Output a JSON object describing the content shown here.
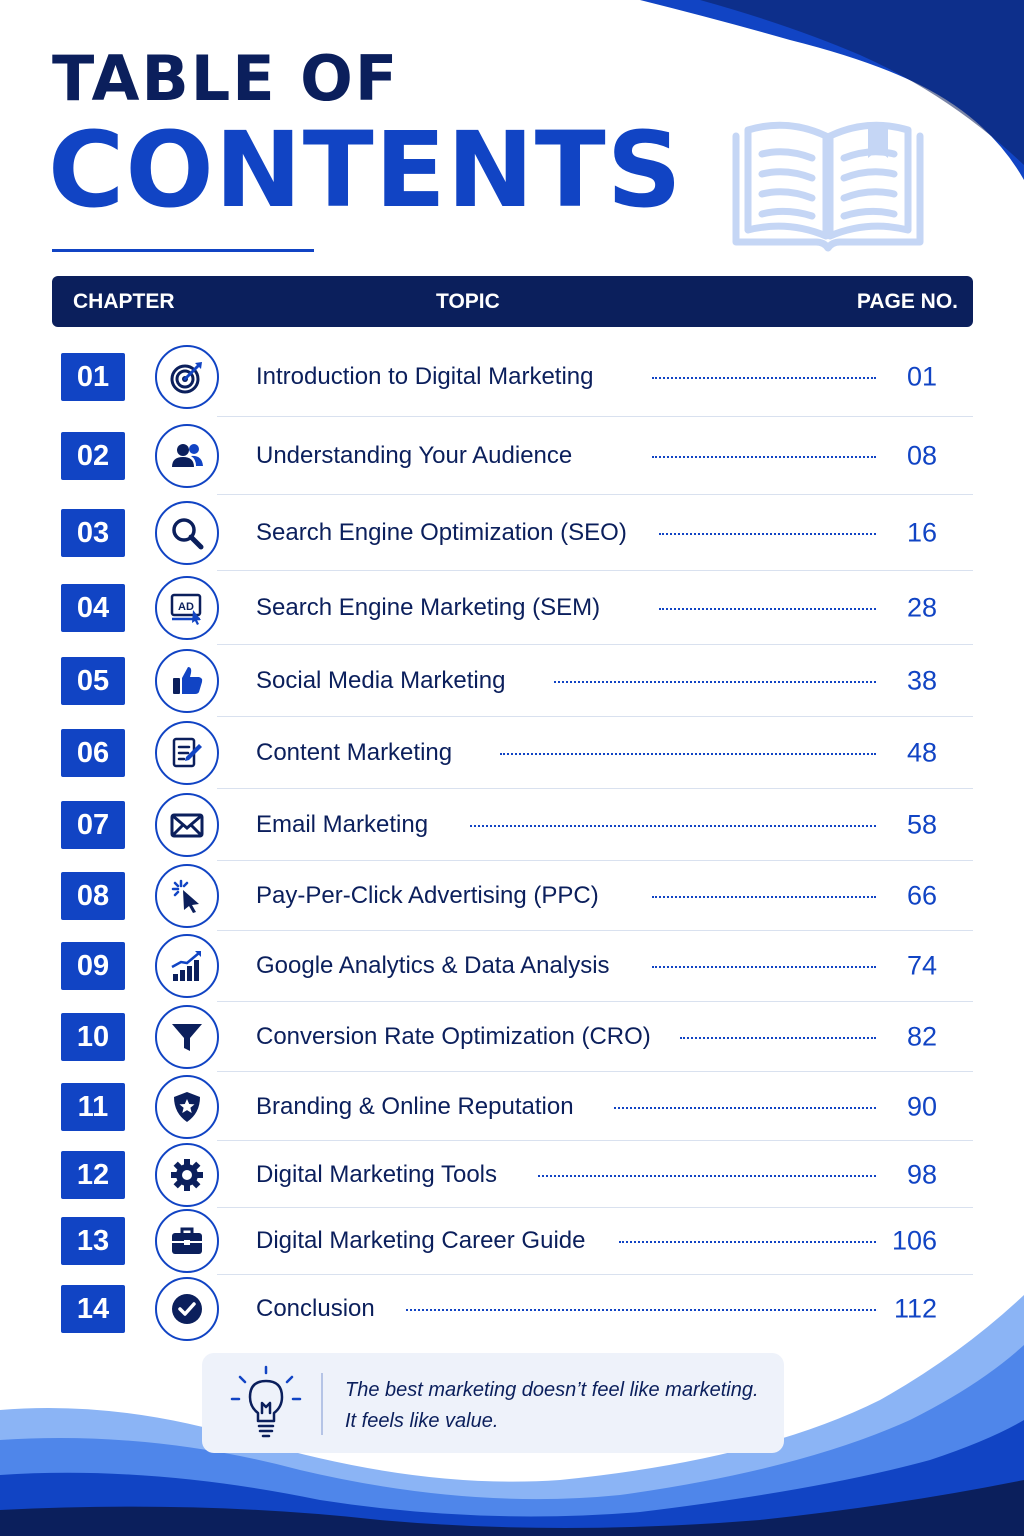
{
  "title": {
    "line1": "TABLE OF",
    "line2": "CONTENTS"
  },
  "table": {
    "headers": {
      "chapter": "CHAPTER",
      "topic": "TOPIC",
      "page": "PAGE NO."
    },
    "rows": [
      {
        "num": "01",
        "icon": "target-icon",
        "topic": "Introduction to Digital Marketing",
        "page": "01"
      },
      {
        "num": "02",
        "icon": "users-icon",
        "topic": "Understanding Your Audience",
        "page": "08"
      },
      {
        "num": "03",
        "icon": "search-icon",
        "topic": "Search Engine Optimization (SEO)",
        "page": "16"
      },
      {
        "num": "04",
        "icon": "ad-click-icon",
        "topic": "Search Engine Marketing (SEM)",
        "page": "28"
      },
      {
        "num": "05",
        "icon": "thumbs-up-icon",
        "topic": "Social Media Marketing",
        "page": "38"
      },
      {
        "num": "06",
        "icon": "edit-document-icon",
        "topic": "Content Marketing",
        "page": "48"
      },
      {
        "num": "07",
        "icon": "envelope-icon",
        "topic": "Email Marketing",
        "page": "58"
      },
      {
        "num": "08",
        "icon": "cursor-click-icon",
        "topic": "Pay-Per-Click Advertising (PPC)",
        "page": "66"
      },
      {
        "num": "09",
        "icon": "bar-chart-trend-icon",
        "topic": "Google Analytics & Data Analysis",
        "page": "74"
      },
      {
        "num": "10",
        "icon": "funnel-icon",
        "topic": "Conversion Rate Optimization (CRO)",
        "page": "82"
      },
      {
        "num": "11",
        "icon": "shield-star-icon",
        "topic": "Branding & Online Reputation",
        "page": "90"
      },
      {
        "num": "12",
        "icon": "gear-icon",
        "topic": "Digital Marketing Tools",
        "page": "98"
      },
      {
        "num": "13",
        "icon": "briefcase-icon",
        "topic": "Digital Marketing Career Guide",
        "page": "106"
      },
      {
        "num": "14",
        "icon": "check-circle-icon",
        "topic": "Conclusion",
        "page": "112"
      }
    ]
  },
  "quote": {
    "icon": "lightbulb-icon",
    "line1": "The best marketing doesn’t feel like marketing.",
    "line2": "It feels like value."
  },
  "colors": {
    "navy": "#0b1f5c",
    "blue": "#1144c4",
    "light_blue": "#6ea0f0",
    "pale": "#eef2fa"
  }
}
